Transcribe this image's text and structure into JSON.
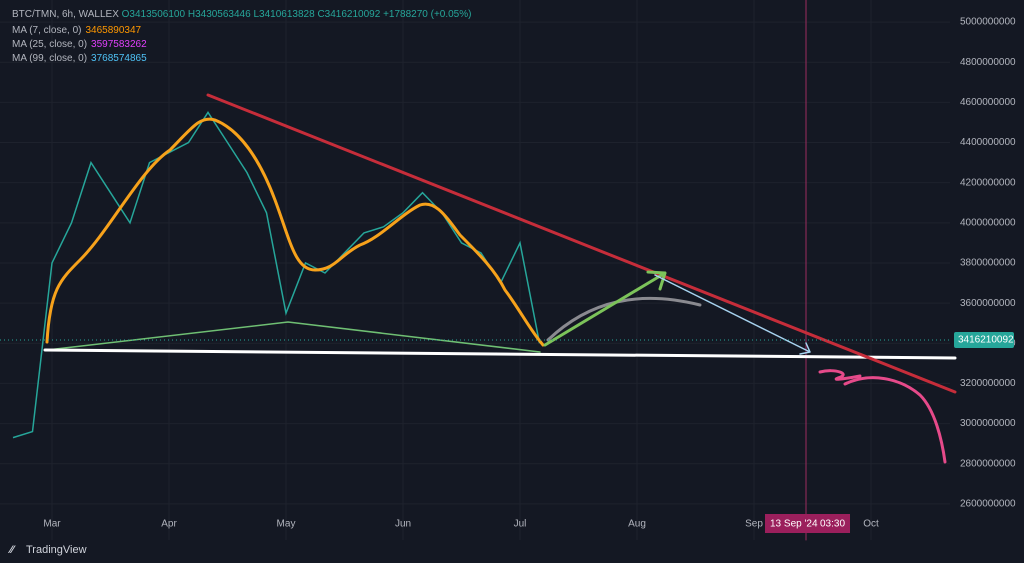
{
  "header": {
    "symbol": "BTC/TMN, 6h, WALLEX",
    "open": "O3413506100",
    "high": "H3430563446",
    "low": "L3410613828",
    "close": "C3416210092",
    "change": "+1788270 (+0.05%)",
    "indicators": [
      {
        "name": "MA (7, close, 0)",
        "value": "3465890347",
        "color": "#ff9800"
      },
      {
        "name": "MA (25, close, 0)",
        "value": "3597583262",
        "color": "#e040fb"
      },
      {
        "name": "MA (99, close, 0)",
        "value": "3768574865",
        "color": "#4fc3f7"
      }
    ]
  },
  "chart_data": {
    "type": "line",
    "color": "#26a69a",
    "categories": [
      null,
      null,
      "Mar",
      null,
      null,
      null,
      null,
      null,
      "Apr",
      null,
      null,
      null,
      null,
      null,
      "May",
      null,
      null,
      null,
      null,
      null,
      "Jun",
      null,
      null,
      null,
      null,
      null,
      "Jul",
      null,
      null,
      null,
      null,
      null,
      "Aug",
      null,
      null,
      null,
      null,
      null,
      "Sep",
      null,
      null,
      null,
      null,
      null,
      "Oct",
      null,
      null,
      null,
      null
    ],
    "values": [
      2930000000,
      2960000000,
      3800000000,
      4000000000,
      4300000000,
      4150000000,
      4000000000,
      4300000000,
      4350000000,
      4400000000,
      4550000000,
      4400000000,
      4250000000,
      4050000000,
      3550000000,
      3800000000,
      3750000000,
      3850000000,
      3950000000,
      3980000000,
      4050000000,
      4150000000,
      4050000000,
      3900000000,
      3850000000,
      3700000000,
      3900000000,
      3400000000,
      null,
      null,
      null,
      null,
      null,
      null,
      null,
      null,
      null,
      null,
      null,
      null,
      null,
      null,
      null,
      null,
      null,
      null,
      null,
      null,
      null
    ],
    "ylim": [
      2420000000,
      5110000000
    ],
    "yticks": [
      2600000000,
      2800000000,
      3000000000,
      3200000000,
      3400000000,
      3600000000,
      3800000000,
      4000000000,
      4200000000,
      4400000000,
      4600000000,
      4800000000,
      5000000000
    ],
    "grid": true,
    "last_price": 3416210092,
    "crosshair": {
      "date": "13 Sep '24",
      "time": "03:30"
    }
  },
  "branding": "TradingView"
}
